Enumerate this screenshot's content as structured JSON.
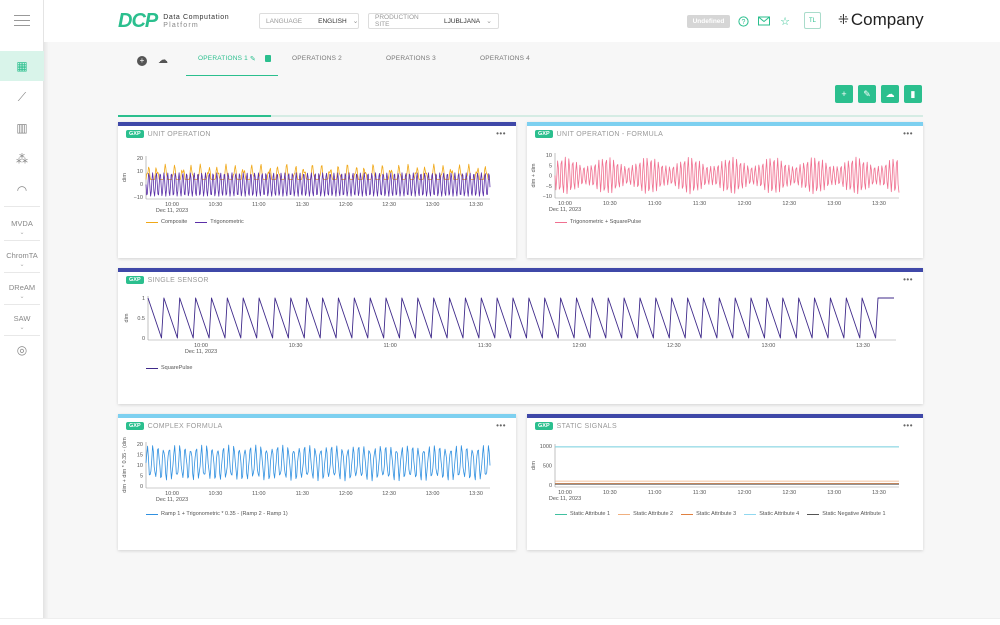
{
  "app": {
    "logo_mark": "DCP",
    "logo_line1": "Data Computation",
    "logo_line2": "Platform",
    "language_label": "LANGUAGE",
    "language_value": "ENGLISH",
    "site_label": "PRODUCTION SITE",
    "site_value": "LJUBLJANA",
    "status_badge": "Undefined",
    "user_initials": "TL",
    "company_name": "Company"
  },
  "sidebar": {
    "items": [
      {
        "label": "MVDA"
      },
      {
        "label": "ChromTA"
      },
      {
        "label": "DReAM"
      },
      {
        "label": "SAW"
      }
    ]
  },
  "tabs": [
    {
      "label": "OPERATIONS 1",
      "active": true
    },
    {
      "label": "OPERATIONS 2"
    },
    {
      "label": "OPERATIONS 3"
    },
    {
      "label": "OPERATIONS 4"
    }
  ],
  "tab_progress": 0.19,
  "colors": {
    "accent": "#2bbf8e",
    "indigo": "#3f48a8",
    "lightblue": "#7dd0f0"
  },
  "panels": [
    {
      "badge": "GXP",
      "title": "UNIT OPERATION",
      "chart_data": {
        "type": "line",
        "x_ticks": [
          "10:00",
          "10:30",
          "11:00",
          "11:30",
          "12:00",
          "12:30",
          "13:00",
          "13:30"
        ],
        "date_label": "Dec 11, 2023",
        "y_ticks": [
          "20",
          "10",
          "0",
          "−10"
        ],
        "ylabel": "dim",
        "series": [
          {
            "name": "Composite",
            "color": "#f0a818"
          },
          {
            "name": "Trigonometric",
            "color": "#5b2fa8"
          }
        ]
      }
    },
    {
      "badge": "GXP",
      "title": "UNIT OPERATION - FORMULA",
      "chart_data": {
        "type": "line",
        "x_ticks": [
          "10:00",
          "10:30",
          "11:00",
          "11:30",
          "12:00",
          "12:30",
          "13:00",
          "13:30"
        ],
        "date_label": "Dec 11, 2023",
        "y_ticks": [
          "10",
          "5",
          "0",
          "−5",
          "−10"
        ],
        "ylabel": "dim + dim",
        "series": [
          {
            "name": "Trigonometric + SquarePulse",
            "color": "#f07090"
          }
        ]
      }
    },
    {
      "badge": "GXP",
      "title": "SINGLE SENSOR",
      "chart_data": {
        "type": "line",
        "x_ticks": [
          "10:00",
          "10:30",
          "11:00",
          "11:30",
          "12:00",
          "12:30",
          "13:00",
          "13:30"
        ],
        "date_label": "Dec 11, 2023",
        "y_ticks": [
          "1",
          "0.5",
          "0"
        ],
        "ylabel": "dim",
        "series": [
          {
            "name": "SquarePulse",
            "color": "#3f2a8a"
          }
        ]
      }
    },
    {
      "badge": "GXP",
      "title": "COMPLEX FORMULA",
      "chart_data": {
        "type": "line",
        "x_ticks": [
          "10:00",
          "10:30",
          "11:00",
          "11:30",
          "12:00",
          "12:30",
          "13:00",
          "13:30"
        ],
        "date_label": "Dec 11, 2023",
        "y_ticks": [
          "20",
          "15",
          "10",
          "5",
          "0"
        ],
        "ylabel": "dim + dim * 0.35 - (dim",
        "series": [
          {
            "name": "Ramp 1 + Trigonometric * 0.35 - (Ramp 2 - Ramp 1)",
            "color": "#3090e0"
          }
        ]
      }
    },
    {
      "badge": "GXP",
      "title": "STATIC SIGNALS",
      "chart_data": {
        "type": "line",
        "x_ticks": [
          "10:00",
          "10:30",
          "11:00",
          "11:30",
          "12:00",
          "12:30",
          "13:00",
          "13:30"
        ],
        "date_label": "Dec 11, 2023",
        "y_ticks": [
          "1000",
          "500",
          "0"
        ],
        "ylabel": "dim",
        "series": [
          {
            "name": "Static Attribute 1",
            "color": "#40c0a0"
          },
          {
            "name": "Static Attribute 2",
            "color": "#f0b080"
          },
          {
            "name": "Static Attribute 3",
            "color": "#e08040"
          },
          {
            "name": "Static Attribute 4",
            "color": "#90d8f0"
          },
          {
            "name": "Static Negative Attribute 1",
            "color": "#555555"
          }
        ]
      }
    }
  ]
}
